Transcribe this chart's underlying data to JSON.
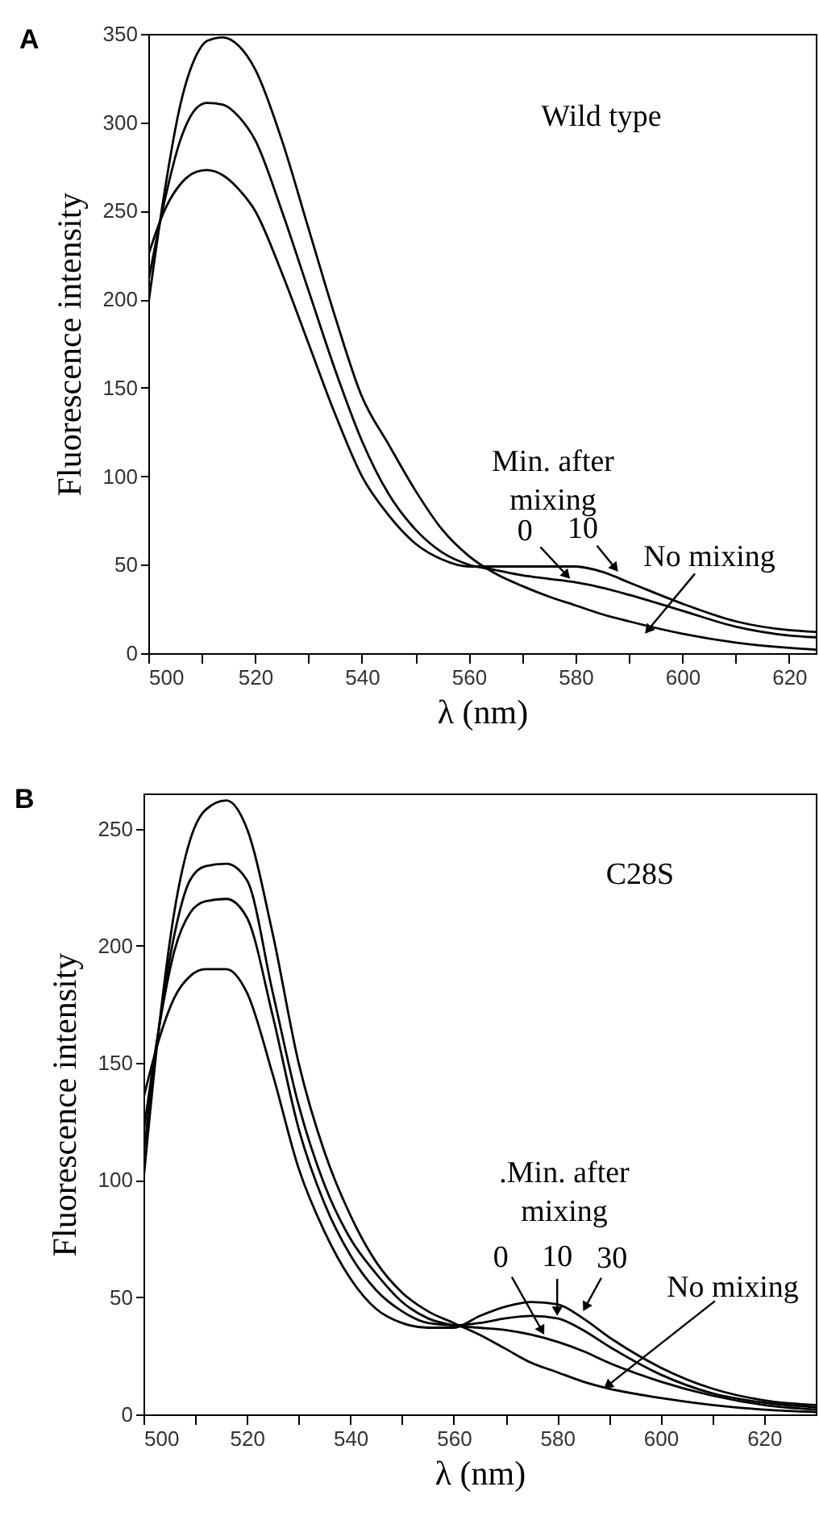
{
  "chart_data": [
    {
      "type": "line",
      "title": "A",
      "xlabel": "λ (nm)",
      "ylabel": "Fluorescence intensity",
      "x": [
        500,
        503,
        506,
        509,
        511,
        514,
        517,
        520,
        525,
        530,
        535,
        540,
        545,
        550,
        555,
        560,
        565,
        570,
        575,
        580,
        585,
        590,
        600,
        610,
        620,
        625
      ],
      "series": [
        {
          "color": "#000000",
          "values": [
            197,
            260,
            310,
            338,
            346,
            348,
            343,
            330,
            290,
            240,
            190,
            145,
            118,
            92,
            70,
            55,
            45,
            38,
            32,
            27,
            22,
            18,
            11,
            6,
            3,
            2
          ]
        },
        {
          "color": "#000000",
          "values": [
            210,
            255,
            290,
            308,
            311,
            310,
            303,
            290,
            250,
            205,
            160,
            120,
            90,
            70,
            57,
            50,
            47,
            44,
            42,
            40,
            37,
            33,
            24,
            15,
            10,
            9
          ]
        },
        {
          "color": "#000000",
          "values": [
            225,
            250,
            265,
            272,
            273,
            270,
            262,
            250,
            215,
            175,
            135,
            100,
            78,
            62,
            53,
            49,
            49,
            49,
            49,
            49,
            46,
            40,
            28,
            18,
            13,
            12
          ]
        }
      ],
      "xlim": [
        500,
        625
      ],
      "ylim": [
        0,
        350
      ],
      "xticks": [
        500,
        {
          "value": 510,
          "label": null
        },
        520,
        {
          "value": 530,
          "label": null
        },
        540,
        {
          "value": 550,
          "label": null
        },
        560,
        {
          "value": 570,
          "label": null
        },
        580,
        {
          "value": 590,
          "label": null
        },
        600,
        {
          "value": 610,
          "label": null
        },
        620
      ],
      "yticks": [
        0,
        50,
        100,
        150,
        200,
        250,
        300,
        350
      ],
      "annotations": [
        "Wild type",
        "Min. after mixing",
        {
          "text": "0",
          "x": 579,
          "y": 42
        },
        {
          "text": "10",
          "x": 588,
          "y": 46
        },
        {
          "text": "No mixing",
          "x": 593,
          "y": 11
        }
      ]
    },
    {
      "type": "line",
      "title": "B",
      "xlabel": "λ (nm)",
      "ylabel": "Fluorescence intensity",
      "x": [
        500,
        503,
        506,
        509,
        512,
        516,
        520,
        525,
        530,
        535,
        540,
        545,
        550,
        555,
        560,
        565,
        570,
        575,
        580,
        585,
        590,
        600,
        610,
        620,
        630
      ],
      "series": [
        {
          "color": "#000000",
          "values": [
            100,
            165,
            215,
            245,
            258,
            262,
            250,
            205,
            150,
            112,
            85,
            65,
            52,
            44,
            39,
            34,
            28,
            22,
            18,
            14,
            11,
            7,
            4,
            2,
            1
          ]
        },
        {
          "color": "#000000",
          "values": [
            110,
            165,
            205,
            228,
            234,
            235,
            228,
            180,
            132,
            98,
            75,
            60,
            48,
            41,
            38,
            37,
            36,
            34,
            31,
            27,
            22,
            14,
            8,
            4,
            2
          ]
        },
        {
          "color": "#000000",
          "values": [
            120,
            165,
            198,
            214,
            219,
            220,
            212,
            170,
            122,
            90,
            68,
            53,
            44,
            39,
            38,
            39,
            41,
            42,
            41,
            36,
            29,
            17,
            9,
            5,
            3
          ]
        },
        {
          "color": "#000000",
          "values": [
            135,
            160,
            178,
            187,
            190,
            190,
            180,
            145,
            105,
            78,
            58,
            45,
            39,
            37,
            37,
            42,
            46,
            48,
            47,
            41,
            33,
            20,
            11,
            6,
            4
          ]
        }
      ],
      "xlim": [
        500,
        630
      ],
      "ylim": [
        0,
        265
      ],
      "xticks": [
        500,
        {
          "value": 510,
          "label": null
        },
        520,
        {
          "value": 530,
          "label": null
        },
        540,
        {
          "value": 550,
          "label": null
        },
        560,
        {
          "value": 570,
          "label": null
        },
        580,
        {
          "value": 590,
          "label": null
        },
        600,
        {
          "value": 610,
          "label": null
        },
        620
      ],
      "yticks": [
        0,
        50,
        100,
        150,
        200,
        250
      ],
      "annotations": [
        "C28S",
        ".Min. after mixing",
        {
          "text": "0",
          "x": 577.5,
          "y": 34
        },
        {
          "text": "10",
          "x": 580,
          "y": 42
        },
        {
          "text": "30",
          "x": 585,
          "y": 44
        },
        {
          "text": "No mixing",
          "x": 589,
          "y": 11
        }
      ]
    }
  ]
}
